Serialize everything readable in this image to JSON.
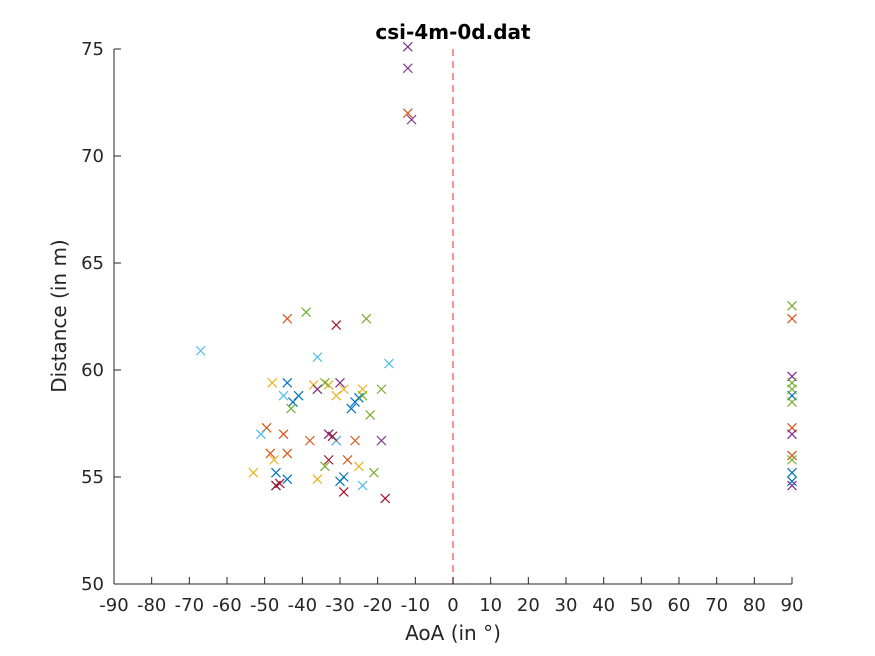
{
  "chart_data": {
    "type": "scatter",
    "title": "csi-4m-0d.dat",
    "xlabel": "AoA (in °)",
    "ylabel": "Distance (in m)",
    "xlim": [
      -90,
      90
    ],
    "ylim": [
      50,
      75
    ],
    "xticks": [
      -90,
      -80,
      -70,
      -60,
      -50,
      -40,
      -30,
      -20,
      -10,
      0,
      10,
      20,
      30,
      40,
      50,
      60,
      70,
      80,
      90
    ],
    "yticks": [
      50,
      55,
      60,
      65,
      70,
      75
    ],
    "grid": false,
    "marker": "x",
    "reference_line": {
      "x": 0,
      "style": "dashed",
      "color": "#ff6b6b"
    },
    "series": [
      {
        "color": "#0072bd",
        "points": [
          [
            -44,
            59.4
          ],
          [
            -42.5,
            58.5
          ],
          [
            -41,
            58.8
          ],
          [
            -47,
            55.2
          ],
          [
            -44,
            54.9
          ],
          [
            -47,
            54.6
          ],
          [
            -27,
            58.2
          ],
          [
            -26,
            58.5
          ],
          [
            -25,
            58.7
          ],
          [
            -30,
            54.8
          ],
          [
            -29,
            55
          ],
          [
            90,
            58.8
          ],
          [
            90,
            55.2
          ],
          [
            90,
            54.8
          ]
        ]
      },
      {
        "color": "#d95319",
        "points": [
          [
            -44,
            62.4
          ],
          [
            -49.5,
            57.3
          ],
          [
            -48.5,
            56.1
          ],
          [
            -45,
            57
          ],
          [
            -44,
            56.1
          ],
          [
            -38,
            56.7
          ],
          [
            -36,
            59.1
          ],
          [
            -33,
            57
          ],
          [
            -28,
            55.8
          ],
          [
            -26,
            56.7
          ],
          [
            -12,
            72
          ],
          [
            90,
            62.4
          ],
          [
            90,
            57.3
          ],
          [
            90,
            56
          ]
        ]
      },
      {
        "color": "#edb120",
        "points": [
          [
            -53,
            55.2
          ],
          [
            -48,
            59.4
          ],
          [
            -47.5,
            55.8
          ],
          [
            -37,
            59.3
          ],
          [
            -36,
            54.9
          ],
          [
            -33,
            59.3
          ],
          [
            -31,
            58.8
          ],
          [
            -29,
            59.1
          ],
          [
            -25,
            55.5
          ],
          [
            -24,
            59.1
          ]
        ]
      },
      {
        "color": "#7e2f8e",
        "points": [
          [
            -36,
            59.1
          ],
          [
            -33,
            57
          ],
          [
            -31,
            56.7
          ],
          [
            -30,
            59.4
          ],
          [
            -19,
            56.7
          ],
          [
            -12,
            75.1
          ],
          [
            -12,
            74.1
          ],
          [
            -11,
            71.7
          ],
          [
            90,
            59.7
          ],
          [
            90,
            57
          ],
          [
            90,
            54.6
          ]
        ]
      },
      {
        "color": "#77ac30",
        "points": [
          [
            -43,
            58.2
          ],
          [
            -39,
            62.7
          ],
          [
            -34,
            59.4
          ],
          [
            -34,
            55.5
          ],
          [
            -23,
            62.4
          ],
          [
            -24,
            58.8
          ],
          [
            -22,
            57.9
          ],
          [
            -21,
            55.2
          ],
          [
            -19,
            59.1
          ],
          [
            90,
            63
          ],
          [
            90,
            59.4
          ],
          [
            90,
            59.1
          ],
          [
            90,
            58.5
          ],
          [
            90,
            55.8
          ]
        ]
      },
      {
        "color": "#4dbeee",
        "points": [
          [
            -67,
            60.9
          ],
          [
            -51,
            57
          ],
          [
            -45,
            58.8
          ],
          [
            -36,
            60.6
          ],
          [
            -17,
            60.3
          ],
          [
            -24,
            54.6
          ],
          [
            -31,
            56.7
          ]
        ]
      },
      {
        "color": "#a2142f",
        "points": [
          [
            -47,
            54.6
          ],
          [
            -46,
            54.7
          ],
          [
            -33,
            55.8
          ],
          [
            -31,
            62.1
          ],
          [
            -32,
            56.9
          ],
          [
            -29,
            54.3
          ],
          [
            -18,
            54
          ]
        ]
      }
    ]
  }
}
